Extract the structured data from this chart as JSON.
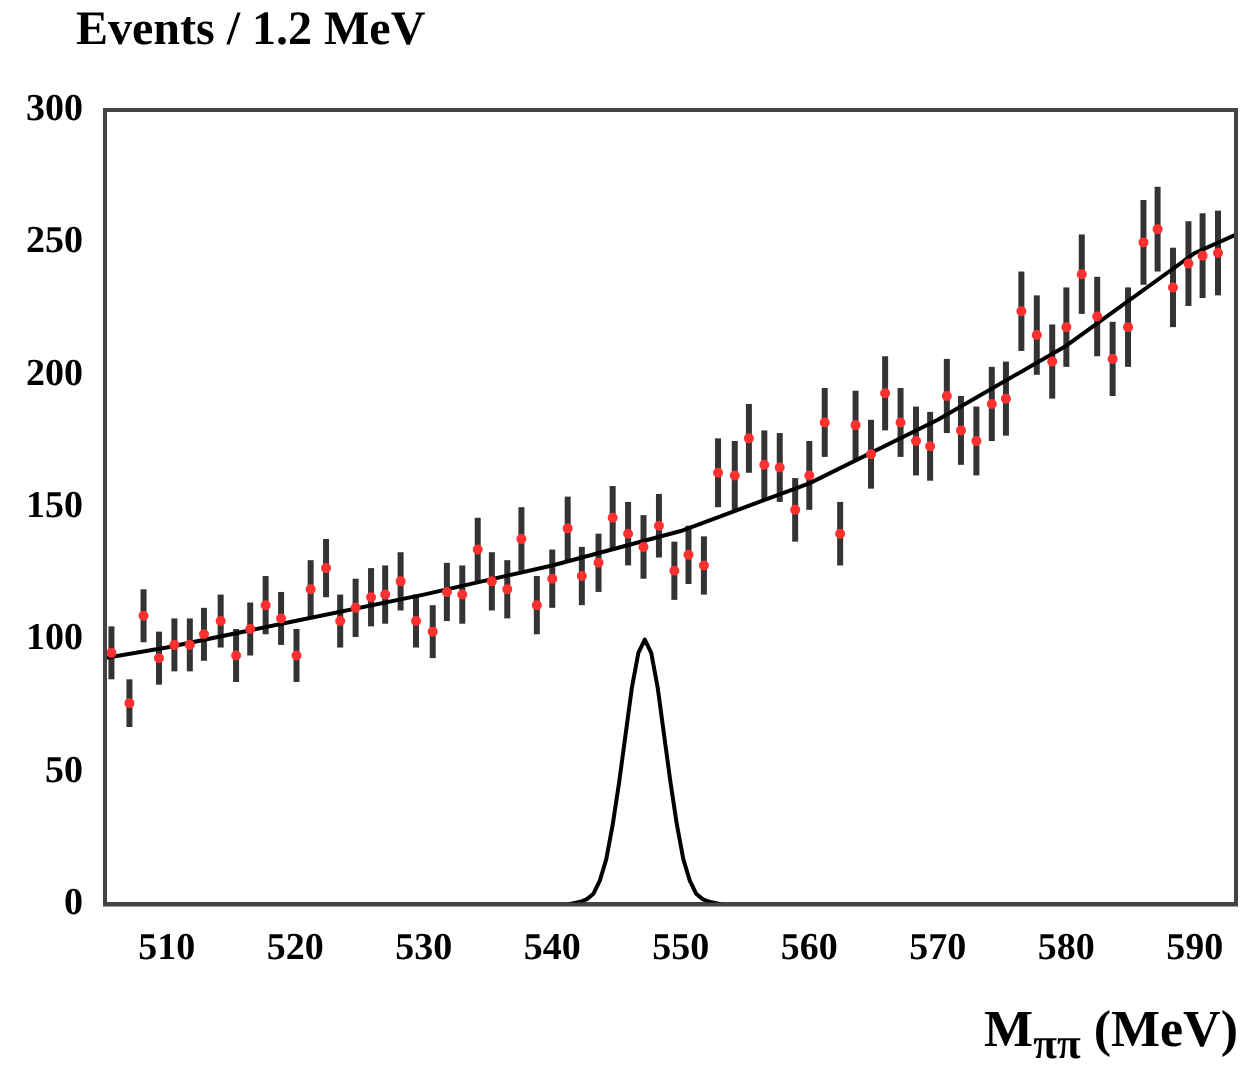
{
  "chart_data": {
    "type": "scatter",
    "xlabel": "M$_{ππ}$ (MeV)",
    "ylabel": "Events / 1.2 MeV",
    "xlim": [
      505.2,
      593.2
    ],
    "ylim": [
      0,
      300
    ],
    "xticks": [
      510,
      520,
      530,
      540,
      550,
      560,
      570,
      580,
      590
    ],
    "yticks": [
      0,
      50,
      100,
      150,
      200,
      250,
      300
    ],
    "series": [
      {
        "marker": "circle",
        "color": "#ff3030",
        "x": [
          505.7,
          507.1,
          508.2,
          509.4,
          510.6,
          511.8,
          512.9,
          514.2,
          515.4,
          516.5,
          517.7,
          518.9,
          520.1,
          521.2,
          522.4,
          523.5,
          524.7,
          525.9,
          527.0,
          528.2,
          529.4,
          530.7,
          531.8,
          533.0,
          534.2,
          535.3,
          536.5,
          537.6,
          538.8,
          540.0,
          541.2,
          542.3,
          543.6,
          544.7,
          545.9,
          547.1,
          548.3,
          549.5,
          550.6,
          551.8,
          552.9,
          554.2,
          555.3,
          556.5,
          557.7,
          558.9,
          560.0,
          561.2,
          562.4,
          563.6,
          564.8,
          565.9,
          567.1,
          568.3,
          569.4,
          570.7,
          571.8,
          573.0,
          574.2,
          575.3,
          576.5,
          577.7,
          578.9,
          580.0,
          581.2,
          582.4,
          583.6,
          584.8,
          586.0,
          587.1,
          588.3,
          589.5,
          590.6,
          591.8
        ],
        "values": [
          95,
          76,
          109,
          93,
          98,
          98,
          102,
          107,
          94,
          104,
          113,
          108,
          94,
          119,
          127,
          107,
          112,
          116,
          117,
          122,
          107,
          103,
          118,
          117,
          134,
          122,
          119,
          138,
          113,
          123,
          142,
          124,
          129,
          146,
          140,
          135,
          143,
          126,
          132,
          128,
          163,
          162,
          176,
          166,
          165,
          149,
          162,
          182,
          140,
          181,
          170,
          193,
          182,
          175,
          173,
          192,
          179,
          175,
          189,
          191,
          224,
          215,
          205,
          218,
          238,
          222,
          206,
          218,
          250,
          255,
          233,
          242,
          245,
          246
        ],
        "errors": [
          10,
          9,
          10,
          10,
          10,
          10,
          10,
          10,
          10,
          10,
          11,
          10,
          10,
          11,
          11,
          10,
          11,
          11,
          11,
          11,
          10,
          10,
          11,
          11,
          12,
          11,
          11,
          12,
          11,
          11,
          12,
          11,
          11,
          12,
          12,
          12,
          12,
          11,
          11,
          11,
          13,
          13,
          13,
          13,
          13,
          12,
          13,
          13,
          12,
          13,
          13,
          14,
          13,
          13,
          13,
          14,
          13,
          13,
          14,
          14,
          15,
          15,
          14,
          15,
          15,
          15,
          14,
          15,
          16,
          16,
          15,
          16,
          16,
          16
        ]
      },
      {
        "type": "line",
        "color": "#000000",
        "line_style": "solid",
        "x": [
          505.2,
          510,
          520,
          530,
          540,
          550,
          560,
          570,
          580,
          590,
          593.2
        ],
        "values": [
          93,
          97,
          107,
          117,
          128,
          141,
          159,
          183,
          211,
          246,
          253
        ]
      },
      {
        "type": "line",
        "color": "#000000",
        "line_style": "solid",
        "x": [
          541.2,
          542.2,
          542.7,
          543.2,
          543.7,
          544.2,
          544.7,
          545.2,
          545.7,
          546.2,
          546.7,
          547.2,
          547.7,
          548.2,
          548.7,
          549.2,
          549.7,
          550.2,
          550.7,
          551.2,
          551.7,
          552.2,
          553.2
        ],
        "values": [
          0,
          1,
          2,
          4,
          9,
          17,
          30,
          46,
          64,
          82,
          95,
          100,
          95,
          82,
          64,
          46,
          30,
          17,
          9,
          4,
          2,
          1,
          0
        ]
      }
    ]
  }
}
